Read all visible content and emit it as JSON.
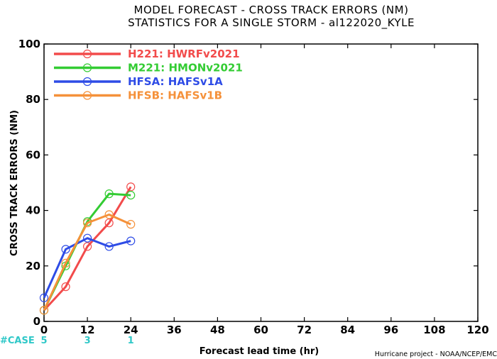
{
  "titles": {
    "line1": "MODEL FORECAST - CROSS TRACK ERRORS (NM)",
    "line2": "STATISTICS FOR A SINGLE STORM - al122020_KYLE"
  },
  "footer": {
    "case_label": "#CASE",
    "case_color": "#2fc8c8",
    "credit": "Hurricane project - NOAA/NCEP/EMC"
  },
  "chart_data": {
    "type": "line",
    "title": "MODEL FORECAST - CROSS TRACK ERRORS (NM)",
    "subtitle": "STATISTICS FOR A SINGLE STORM - al122020_KYLE",
    "xlabel": "Forecast lead time (hr)",
    "ylabel": "CROSS TRACK ERRORS (NM)",
    "xlim": [
      0,
      120
    ],
    "ylim": [
      0,
      100
    ],
    "x_ticks": [
      0,
      12,
      24,
      36,
      48,
      60,
      72,
      84,
      96,
      108,
      120
    ],
    "y_ticks": [
      0,
      20,
      40,
      60,
      80,
      100
    ],
    "grid": false,
    "legend_position": "top-left",
    "series": [
      {
        "name": "H221: HWRFv2021",
        "color": "#f24b4b",
        "x": [
          0,
          6,
          12,
          18,
          24
        ],
        "values": [
          4,
          12.5,
          27,
          35.5,
          48.5
        ]
      },
      {
        "name": "M221: HMONv2021",
        "color": "#33cc33",
        "x": [
          0,
          6,
          12,
          18,
          24
        ],
        "values": [
          4,
          20,
          36,
          46,
          45.5
        ]
      },
      {
        "name": "HFSA: HAFSv1A",
        "color": "#2e4ce6",
        "x": [
          0,
          6,
          12,
          18,
          24
        ],
        "values": [
          8.5,
          26,
          30,
          27,
          29
        ]
      },
      {
        "name": "HFSB: HAFSv1B",
        "color": "#f5913a",
        "x": [
          0,
          6,
          12,
          18,
          24
        ],
        "values": [
          4,
          21,
          35.5,
          38.5,
          35
        ]
      }
    ],
    "case_counts": [
      {
        "x": 0,
        "count": "5"
      },
      {
        "x": 12,
        "count": "3"
      },
      {
        "x": 24,
        "count": "1"
      }
    ]
  }
}
